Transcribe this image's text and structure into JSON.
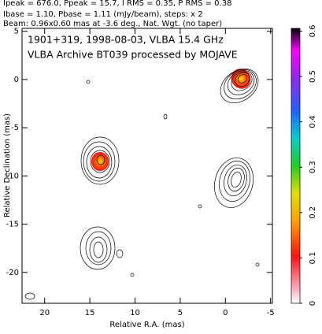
{
  "chart_data": {
    "type": "contour",
    "header": [
      "Ipeak = 676.0, Ppeak = 15.7, I RMS = 0.35, P RMS = 0.38",
      "Ibase = 1.10, Pbase = 1.11 (mJy/beam), steps: x 2",
      "Beam: 0.96x0.60 mas at -3.6 deg., Nat. Wgt. (no taper)"
    ],
    "annotations": [
      "1901+319, 1998-08-03, VLBA 15.4 GHz",
      "VLBA Archive BT039 processed by MOJAVE"
    ],
    "xlabel": "Relative R.A. (mas)",
    "ylabel": "Relative Declination (mas)",
    "xlim": [
      22.5,
      -5.2
    ],
    "xticks": [
      20,
      15,
      10,
      5,
      0,
      -5
    ],
    "ylim": [
      -23.2,
      5.3
    ],
    "yticks": [
      5,
      0,
      -5,
      -10,
      -15,
      -20
    ],
    "clim": [
      0,
      0.606
    ],
    "cticks": [
      0,
      0.1,
      0.2,
      0.3,
      0.4,
      0.5,
      0.6
    ]
  }
}
